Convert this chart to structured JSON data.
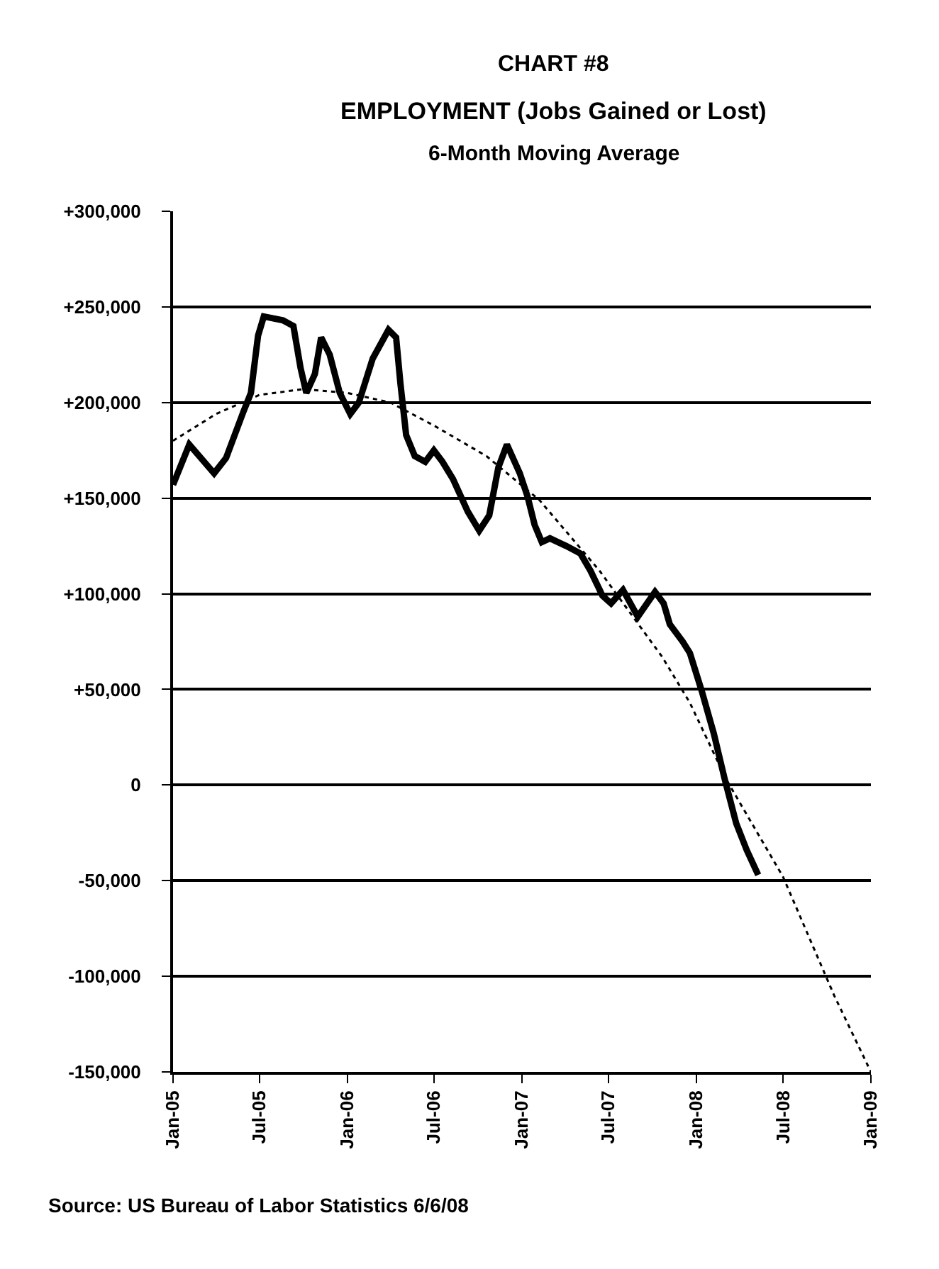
{
  "chart_data": {
    "type": "line",
    "title": "EMPLOYMENT (Jobs Gained or Lost)",
    "subtitle": "6-Month Moving Average",
    "annotations": [
      "CHART #8",
      "Source: US Bureau of Labor Statistics 6/6/08"
    ],
    "series": [
      {
        "color": "#000000",
        "line_style": "solid",
        "x": [
          "2005-01-01",
          "2005-02-04",
          "2005-03-28",
          "2005-04-22",
          "2005-05-28",
          "2005-06-13",
          "2005-06-28",
          "2005-07-10",
          "2005-08-19",
          "2005-09-10",
          "2005-09-25",
          "2005-10-07",
          "2005-10-25",
          "2005-11-07",
          "2005-11-25",
          "2005-12-16",
          "2006-01-07",
          "2006-01-25",
          "2006-02-23",
          "2006-03-28",
          "2006-04-13",
          "2006-04-22",
          "2006-05-04",
          "2006-05-22",
          "2006-06-13",
          "2006-07-01",
          "2006-07-19",
          "2006-08-10",
          "2006-09-10",
          "2006-10-04",
          "2006-10-25",
          "2006-11-13",
          "2006-12-01",
          "2006-12-28",
          "2007-01-13",
          "2007-01-28",
          "2007-02-12",
          "2007-03-01",
          "2007-04-04",
          "2007-05-04",
          "2007-05-25",
          "2007-06-19",
          "2007-07-07",
          "2007-08-01",
          "2007-09-01",
          "2007-10-07",
          "2007-10-25",
          "2007-11-07",
          "2007-12-04",
          "2007-12-19",
          "2008-01-13",
          "2008-02-07",
          "2008-03-01",
          "2008-03-25",
          "2008-04-16",
          "2008-05-10"
        ],
        "values": [
          157000,
          178000,
          163000,
          171000,
          195000,
          205000,
          235000,
          245000,
          243000,
          240000,
          218000,
          205000,
          215000,
          234000,
          225000,
          205000,
          194000,
          200000,
          223000,
          238000,
          234000,
          210000,
          183000,
          172000,
          169000,
          175000,
          169000,
          160000,
          143000,
          133000,
          141000,
          166000,
          178000,
          163000,
          151000,
          136000,
          127000,
          129000,
          125000,
          121000,
          112000,
          99000,
          95000,
          102000,
          88000,
          101000,
          95000,
          84000,
          75000,
          69000,
          49000,
          27000,
          3000,
          -20000,
          -34000,
          -47000
        ]
      },
      {
        "color": "#000000",
        "line_style": "dotted",
        "x": [
          "2005-01-01",
          "2005-04-01",
          "2005-07-01",
          "2005-10-01",
          "2006-01-01",
          "2006-04-01",
          "2006-07-01",
          "2006-10-19",
          "2007-02-07",
          "2007-06-13",
          "2007-10-22",
          "2007-12-19",
          "2008-03-04",
          "2008-07-01",
          "2008-10-16",
          "2009-01-01"
        ],
        "values": [
          180000,
          194000,
          204000,
          207000,
          205000,
          200000,
          188000,
          172000,
          149000,
          112000,
          67000,
          43000,
          3000,
          -48000,
          -110000,
          -150000
        ]
      }
    ],
    "xlim": [
      "2005-01-01",
      "2009-01-01"
    ],
    "xticks": [
      {
        "value": "2005-01-01",
        "label": "Jan-05"
      },
      {
        "value": "2005-07-01",
        "label": "Jul-05"
      },
      {
        "value": "2006-01-01",
        "label": "Jan-06"
      },
      {
        "value": "2006-07-01",
        "label": "Jul-06"
      },
      {
        "value": "2007-01-01",
        "label": "Jan-07"
      },
      {
        "value": "2007-07-01",
        "label": "Jul-07"
      },
      {
        "value": "2008-01-01",
        "label": "Jan-08"
      },
      {
        "value": "2008-07-01",
        "label": "Jul-08"
      },
      {
        "value": "2009-01-01",
        "label": "Jan-09"
      }
    ],
    "ylim": [
      -150000,
      300000
    ],
    "yticks": [
      {
        "value": -150000,
        "label": "-150,000"
      },
      {
        "value": -100000,
        "label": "-100,000"
      },
      {
        "value": -50000,
        "label": "-50,000"
      },
      {
        "value": 0,
        "label": "0"
      },
      {
        "value": 50000,
        "label": "+50,000"
      },
      {
        "value": 100000,
        "label": "+100,000"
      },
      {
        "value": 150000,
        "label": "+150,000"
      },
      {
        "value": 200000,
        "label": "+200,000"
      },
      {
        "value": 250000,
        "label": "+250,000"
      },
      {
        "value": 300000,
        "label": "+300,000"
      }
    ],
    "grid": "y"
  }
}
